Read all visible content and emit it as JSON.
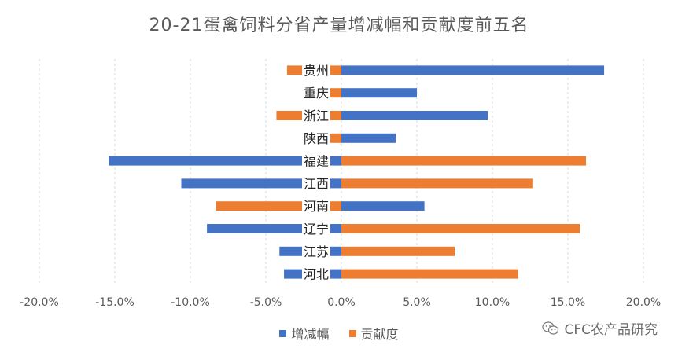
{
  "chart_data": {
    "type": "bar",
    "orientation": "horizontal",
    "title": "20-21蛋禽饲料分省产量增减幅和贡献度前五名",
    "categories": [
      "贵州",
      "重庆",
      "浙江",
      "陕西",
      "福建",
      "江西",
      "河南",
      "辽宁",
      "江苏",
      "河北"
    ],
    "series": [
      {
        "name": "增减幅",
        "color": "#4472C4",
        "values": [
          17.4,
          5.0,
          9.7,
          3.6,
          -15.4,
          -10.6,
          5.5,
          -8.9,
          -4.1,
          -3.8
        ]
      },
      {
        "name": "贡献度",
        "color": "#ED7D31",
        "values": [
          -3.6,
          -0.8,
          -4.3,
          -0.8,
          16.2,
          12.7,
          -8.3,
          15.8,
          7.5,
          11.7
        ]
      }
    ],
    "xlim": [
      -20,
      20
    ],
    "xticks": [
      "-20.0%",
      "-15.0%",
      "-10.0%",
      "-5.0%",
      "0.0%",
      "5.0%",
      "10.0%",
      "15.0%",
      "20.0%"
    ],
    "xtick_values": [
      -20,
      -15,
      -10,
      -5,
      0,
      5,
      10,
      15,
      20
    ],
    "grid": "vertical dashed",
    "legend_position": "bottom"
  },
  "watermark": "CFC农产品研究"
}
